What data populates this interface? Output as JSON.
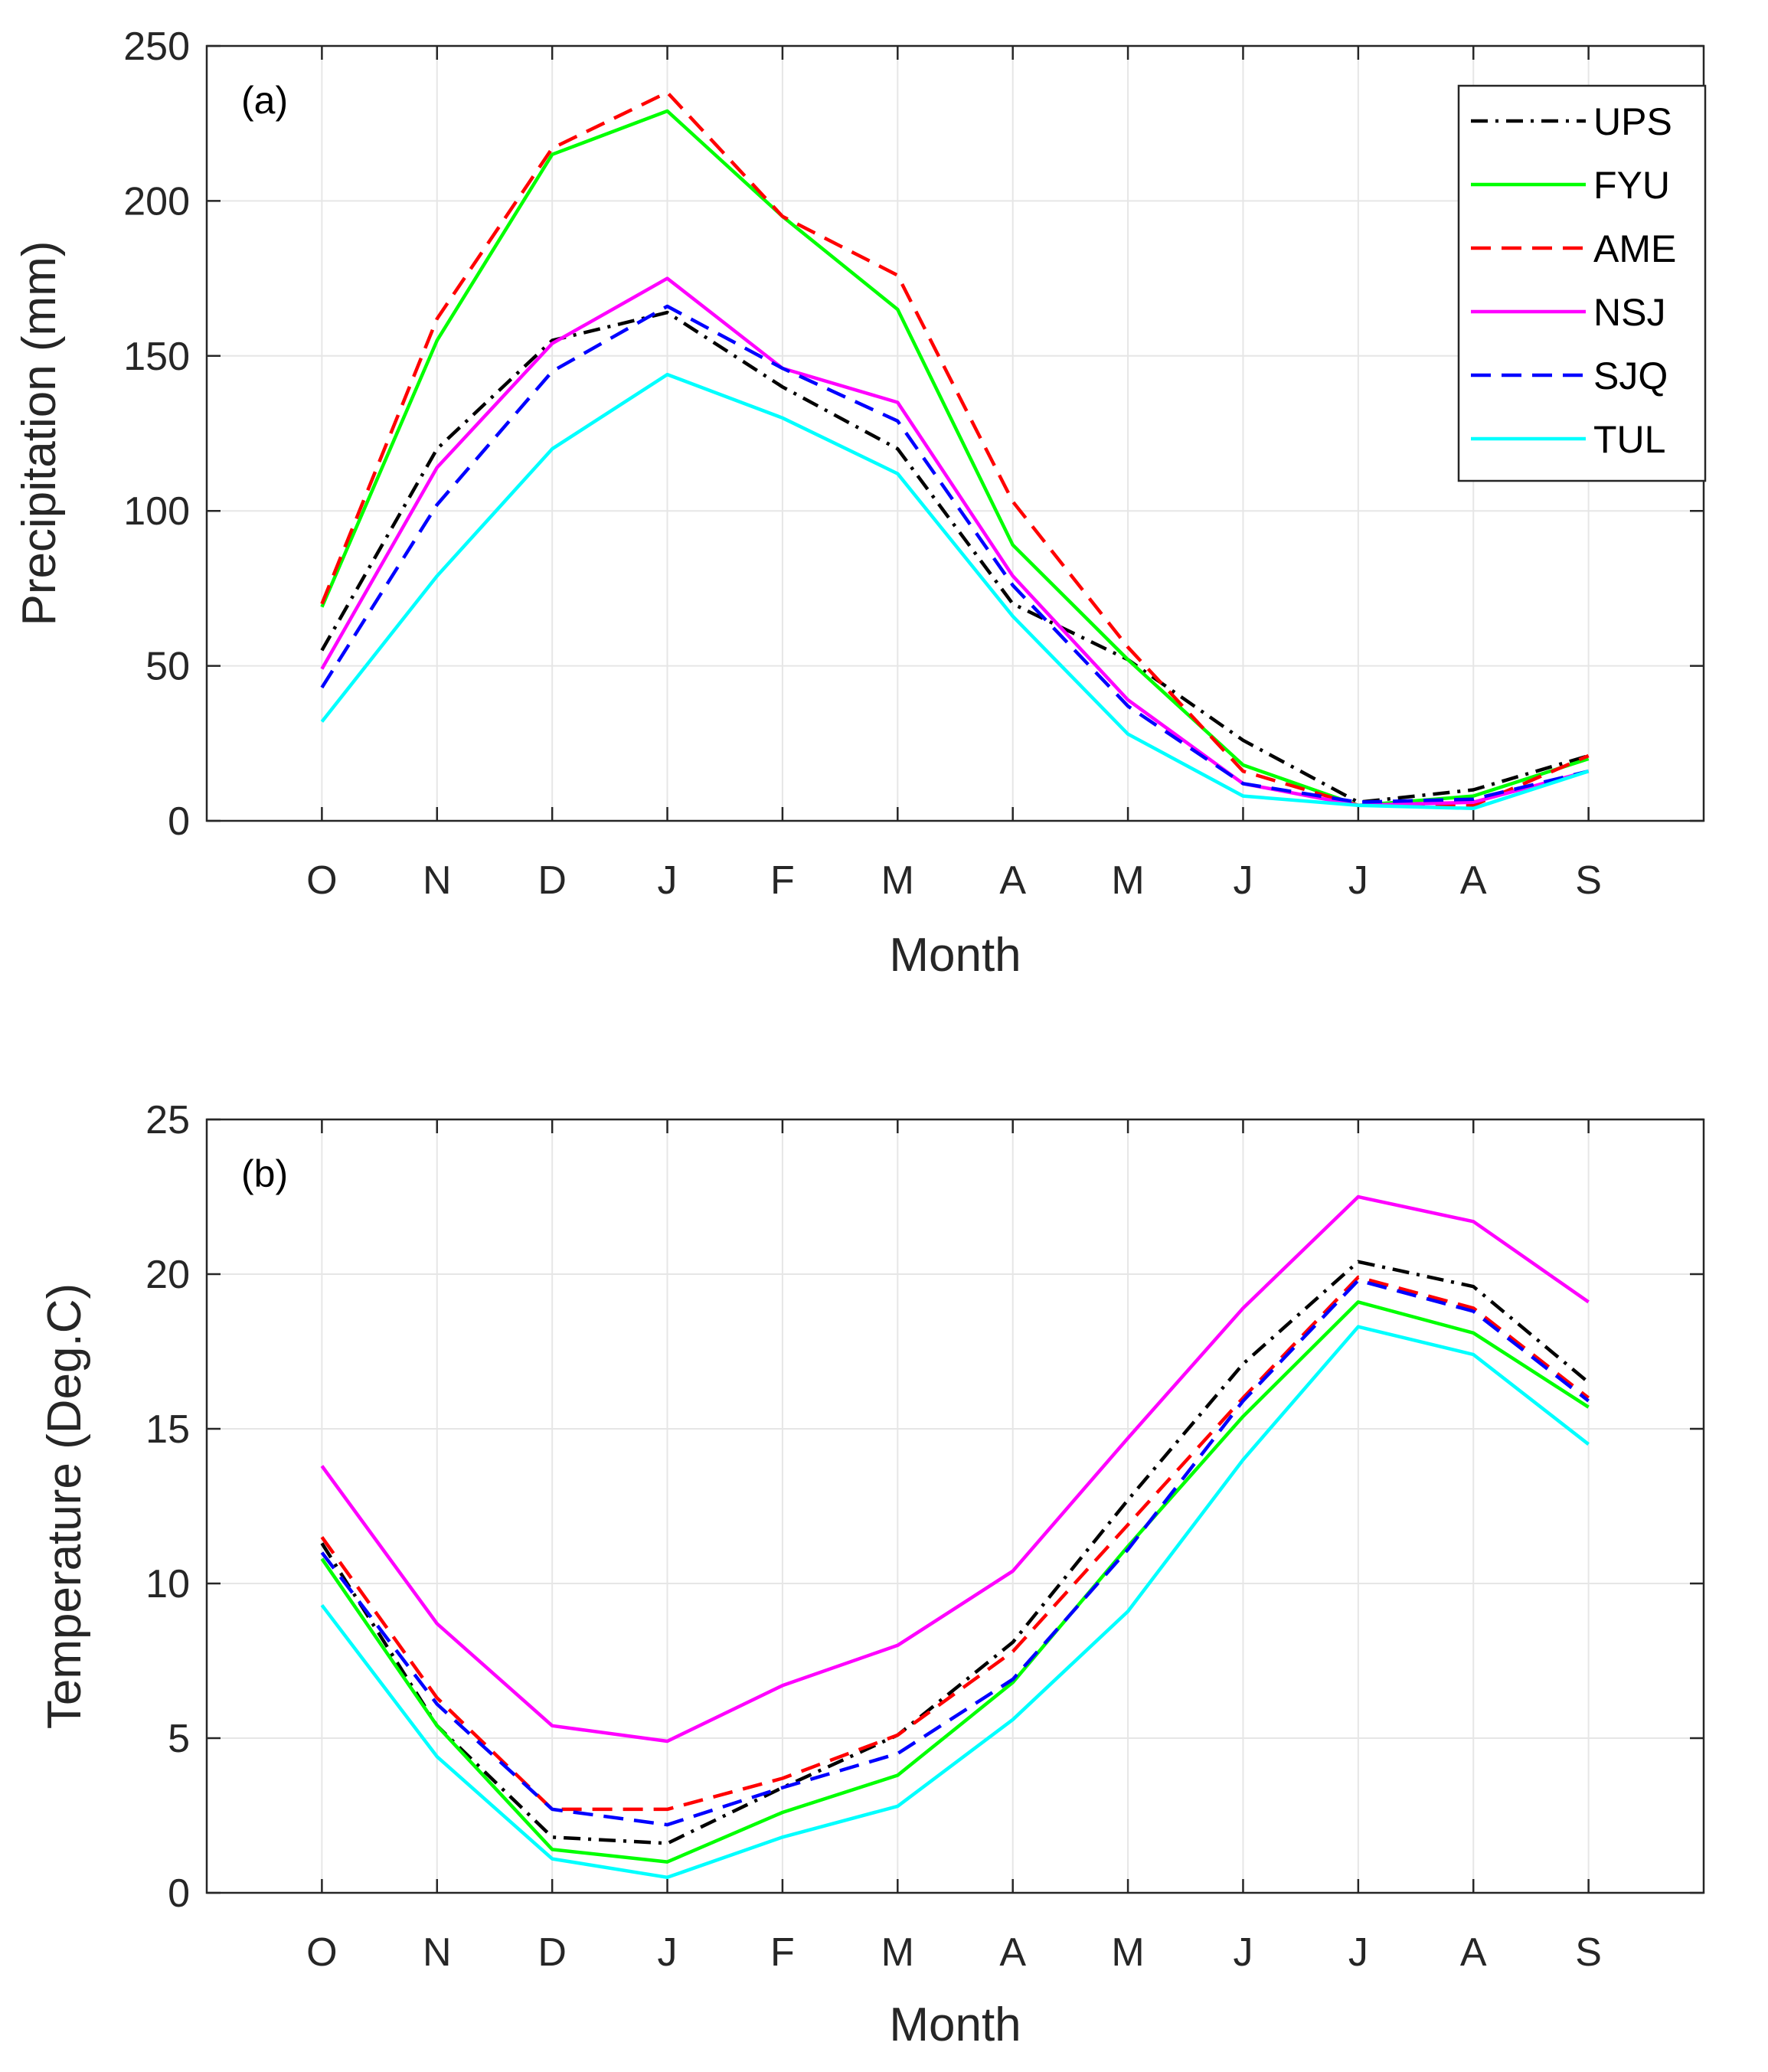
{
  "colors": {
    "UPS": "#000000",
    "FYU": "#00ff00",
    "AME": "#ff0000",
    "NSJ": "#ff00ff",
    "SJQ": "#0000ff",
    "TUL": "#00ffff"
  },
  "chart_data": [
    {
      "type": "line",
      "panel_label": "(a)",
      "title": "",
      "xlabel": "Month",
      "ylabel": "Precipitation (mm)",
      "categories": [
        "O",
        "N",
        "D",
        "J",
        "F",
        "M",
        "A",
        "M",
        "J",
        "J",
        "A",
        "S"
      ],
      "ylim": [
        0,
        250
      ],
      "yticks": [
        0,
        50,
        100,
        150,
        200,
        250
      ],
      "grid": true,
      "legend": "top-right",
      "series": [
        {
          "name": "UPS",
          "style": "dash-dot",
          "values": [
            55,
            120,
            155,
            164,
            140,
            120,
            70,
            52,
            26,
            6,
            10,
            21
          ]
        },
        {
          "name": "FYU",
          "style": "solid",
          "values": [
            69,
            155,
            215,
            229,
            195,
            165,
            89,
            52,
            18,
            5,
            8,
            20
          ]
        },
        {
          "name": "AME",
          "style": "dashed",
          "values": [
            70,
            162,
            217,
            235,
            195,
            176,
            103,
            56,
            16,
            5,
            5,
            21
          ]
        },
        {
          "name": "NSJ",
          "style": "solid",
          "values": [
            49,
            114,
            154,
            175,
            146,
            135,
            79,
            39,
            12,
            5,
            6,
            16
          ]
        },
        {
          "name": "SJQ",
          "style": "dashed",
          "values": [
            43,
            102,
            145,
            166,
            146,
            129,
            76,
            37,
            12,
            6,
            7,
            16
          ]
        },
        {
          "name": "TUL",
          "style": "solid",
          "values": [
            32,
            79,
            120,
            144,
            130,
            112,
            66,
            28,
            8,
            5,
            4,
            16
          ]
        }
      ]
    },
    {
      "type": "line",
      "panel_label": "(b)",
      "title": "",
      "xlabel": "Month",
      "ylabel": "Temperature (Deg.C)",
      "categories": [
        "O",
        "N",
        "D",
        "J",
        "F",
        "M",
        "A",
        "M",
        "J",
        "J",
        "A",
        "S"
      ],
      "ylim": [
        0,
        25
      ],
      "yticks": [
        0,
        5,
        10,
        15,
        20,
        25
      ],
      "grid": true,
      "legend": "none",
      "series": [
        {
          "name": "UPS",
          "style": "dash-dot",
          "values": [
            11.3,
            5.4,
            1.8,
            1.6,
            3.4,
            5.1,
            8.1,
            12.7,
            17.1,
            20.4,
            19.6,
            16.5
          ]
        },
        {
          "name": "FYU",
          "style": "solid",
          "values": [
            10.8,
            5.4,
            1.4,
            1.0,
            2.6,
            3.8,
            6.8,
            11.2,
            15.4,
            19.1,
            18.1,
            15.7
          ]
        },
        {
          "name": "AME",
          "style": "dashed",
          "values": [
            11.5,
            6.3,
            2.7,
            2.7,
            3.7,
            5.1,
            7.8,
            11.9,
            16.0,
            19.9,
            18.9,
            16.0
          ]
        },
        {
          "name": "NSJ",
          "style": "solid",
          "values": [
            13.8,
            8.7,
            5.4,
            4.9,
            6.7,
            8.0,
            10.4,
            14.7,
            18.9,
            22.5,
            21.7,
            19.1
          ]
        },
        {
          "name": "SJQ",
          "style": "dashed",
          "values": [
            11.0,
            6.1,
            2.7,
            2.2,
            3.4,
            4.5,
            6.9,
            11.1,
            15.9,
            19.8,
            18.8,
            15.9
          ]
        },
        {
          "name": "TUL",
          "style": "solid",
          "values": [
            9.3,
            4.4,
            1.1,
            0.5,
            1.8,
            2.8,
            5.6,
            9.1,
            14.0,
            18.3,
            17.4,
            14.5
          ]
        }
      ]
    }
  ]
}
